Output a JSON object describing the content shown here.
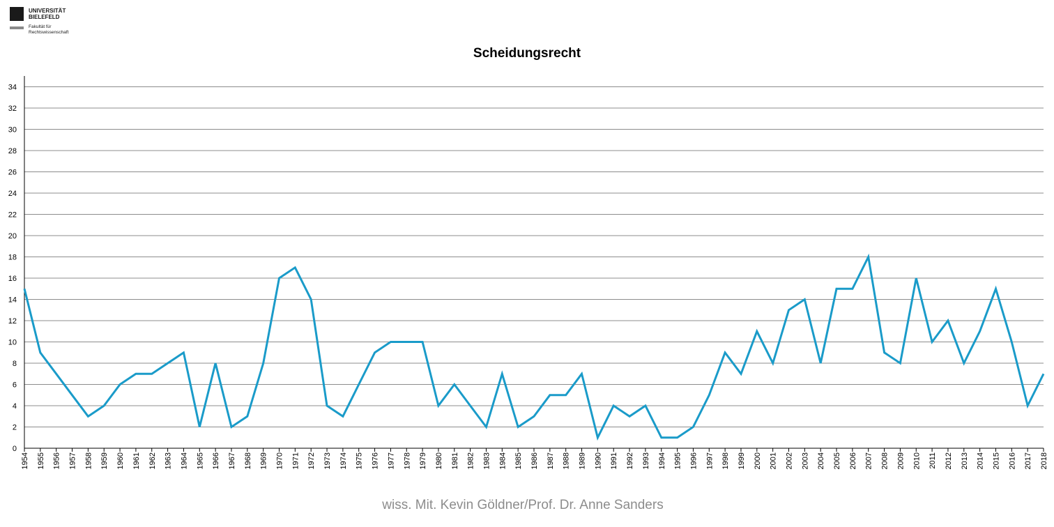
{
  "logo": {
    "name_line1": "UNIVERSITÄT",
    "name_line2": "BIELEFELD",
    "sub_line1": "Fakultät für",
    "sub_line2": "Rechtswissenschaft"
  },
  "footer": {
    "text": "wiss. Mit. Kevin Göldner/Prof.  Dr. Anne Sanders"
  },
  "colors": {
    "line": "#1a9bc9",
    "grid": "#8c8c8c",
    "axis": "#000000"
  },
  "chart_data": {
    "type": "line",
    "title": "Scheidungsrecht",
    "xlabel": "",
    "ylabel": "",
    "ylim": [
      0,
      35
    ],
    "yticks": [
      0,
      2,
      4,
      6,
      8,
      10,
      12,
      14,
      16,
      18,
      20,
      22,
      24,
      26,
      28,
      30,
      32,
      34
    ],
    "grid": true,
    "x": [
      "1954",
      "1955",
      "1956",
      "1957",
      "1958",
      "1959",
      "1960",
      "1961",
      "1962",
      "1963",
      "1964",
      "1965",
      "1966",
      "1967",
      "1968",
      "1969",
      "1970",
      "1971",
      "1972",
      "1973",
      "1974",
      "1975",
      "1976",
      "1977",
      "1978",
      "1979",
      "1980",
      "1981",
      "1982",
      "1983",
      "1984",
      "1985",
      "1986",
      "1987",
      "1988",
      "1989",
      "1990",
      "1991",
      "1992",
      "1993",
      "1994",
      "1995",
      "1996",
      "1997",
      "1998",
      "1999",
      "2000",
      "2001",
      "2002",
      "2003",
      "2004",
      "2005",
      "2006",
      "2007",
      "2008",
      "2009",
      "2010",
      "2011",
      "2012",
      "2013",
      "2014",
      "2015",
      "2016",
      "2017",
      "2018"
    ],
    "series": [
      {
        "values": [
          15,
          9,
          7,
          5,
          3,
          4,
          6,
          7,
          7,
          8,
          9,
          2,
          8,
          2,
          3,
          8,
          16,
          17,
          14,
          4,
          3,
          6,
          9,
          10,
          10,
          10,
          4,
          6,
          4,
          2,
          7,
          2,
          3,
          5,
          5,
          7,
          1,
          4,
          3,
          4,
          1,
          1,
          2,
          5,
          9,
          7,
          11,
          8,
          13,
          14,
          8,
          15,
          15,
          18,
          9,
          8,
          16,
          10,
          12,
          8,
          11,
          15,
          10,
          4,
          7
        ]
      }
    ]
  }
}
